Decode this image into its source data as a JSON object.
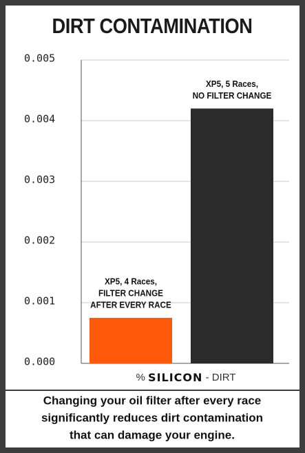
{
  "chart_data": {
    "type": "bar",
    "title": "DIRT CONTAMINATION",
    "bar_labels": [
      [
        "XP5, 4 Races,",
        "FILTER CHANGE",
        "AFTER EVERY RACE"
      ],
      [
        "XP5, 5 Races,",
        "NO FILTER CHANGE"
      ]
    ],
    "values": [
      0.00075,
      0.0042
    ],
    "colors": [
      "#ff5a0a",
      "#2b2b2b"
    ],
    "ylim": [
      0,
      0.005
    ],
    "yticks": [
      {
        "value": 0,
        "label": "0.000"
      },
      0.001,
      0.002,
      0.003,
      0.004,
      0.005
    ],
    "grid": true,
    "x_label": {
      "prefix": "%",
      "emphasis": "SILICON",
      "suffix": "- DIRT"
    },
    "caption": [
      "Changing your oil filter after every race",
      "significantly reduces dirt contamination",
      "that can damage your engine."
    ]
  }
}
